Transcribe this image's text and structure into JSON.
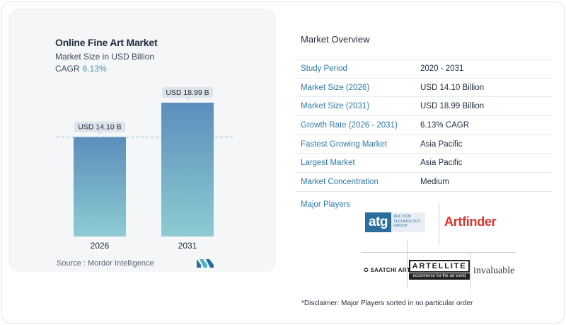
{
  "chart_data": {
    "type": "bar",
    "title": "Online Fine Art Market",
    "subtitle": "Market Size in USD Billion",
    "cagr_label": "CAGR",
    "cagr_value": "6.13%",
    "categories": [
      "2026",
      "2031"
    ],
    "values": [
      14.1,
      18.99
    ],
    "value_labels": [
      "USD 14.10 B",
      "USD 18.99 B"
    ],
    "colors": {
      "bar_top": "#5b8fbc",
      "bar_bottom": "#8ecbd2",
      "label_bg": "#dde3e8"
    },
    "reference_line": "dashed at 2026 value"
  },
  "source": "Source :  Mordor Intelligence",
  "overview": {
    "title": "Market Overview",
    "rows": [
      {
        "label": "Study Period",
        "value": "2020 - 2031"
      },
      {
        "label": "Market Size (2026)",
        "value": "USD 14.10 Billion"
      },
      {
        "label": "Market Size (2031)",
        "value": "USD 18.99 Billion"
      },
      {
        "label": "Growth Rate (2026 - 2031)",
        "value": "6.13% CAGR"
      },
      {
        "label": "Fastest Growing Market",
        "value": "Asia Pacific"
      },
      {
        "label": "Largest Market",
        "value": "Asia Pacific"
      },
      {
        "label": "Market Concentration",
        "value": "Medium"
      }
    ]
  },
  "players": {
    "title": "Major Players",
    "atg_big": "atg",
    "atg_small": "AUCTION TECHNOLOGY GROUP",
    "artfinder": "Artfinder",
    "saatchi": "✪ SAATCHI ART",
    "artellite": "ARTELLITE",
    "artellite_sub": "ecommerce for the art world",
    "invaluable": "invaluable"
  },
  "disclaimer": "*Disclaimer: Major Players sorted in no particular order"
}
